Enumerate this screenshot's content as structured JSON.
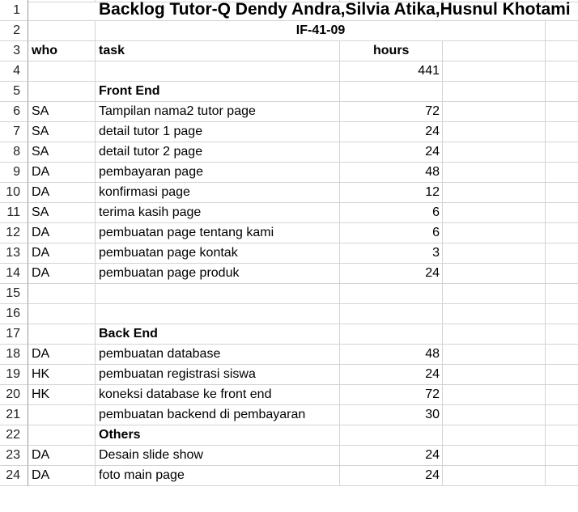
{
  "title": "Backlog Tutor-Q Dendy Andra,Silvia Atika,Husnul Khotami",
  "subtitle": "IF-41-09",
  "headers": {
    "who": "who",
    "task": "task",
    "hours": "hours"
  },
  "total_hours": "441",
  "sections": {
    "front_end": "Front End",
    "back_end": "Back End",
    "others": "Others"
  },
  "rows": [
    {
      "n": "1"
    },
    {
      "n": "2"
    },
    {
      "n": "3"
    },
    {
      "n": "4"
    },
    {
      "n": "5"
    },
    {
      "n": "6",
      "who": "SA",
      "task": "Tampilan nama2 tutor page",
      "hours": "72"
    },
    {
      "n": "7",
      "who": "SA",
      "task": "detail tutor 1 page",
      "hours": "24"
    },
    {
      "n": "8",
      "who": "SA",
      "task": "detail tutor 2 page",
      "hours": "24"
    },
    {
      "n": "9",
      "who": "DA",
      "task": "pembayaran page",
      "hours": "48"
    },
    {
      "n": "10",
      "who": "DA",
      "task": "konfirmasi page",
      "hours": "12"
    },
    {
      "n": "11",
      "who": "SA",
      "task": "terima kasih page",
      "hours": "6"
    },
    {
      "n": "12",
      "who": "DA",
      "task": "pembuatan page tentang kami",
      "hours": "6"
    },
    {
      "n": "13",
      "who": "DA",
      "task": "pembuatan page kontak",
      "hours": "3"
    },
    {
      "n": "14",
      "who": "DA",
      "task": "pembuatan page produk",
      "hours": "24"
    },
    {
      "n": "15"
    },
    {
      "n": "16"
    },
    {
      "n": "17"
    },
    {
      "n": "18",
      "who": "DA",
      "task": "pembuatan database",
      "hours": "48"
    },
    {
      "n": "19",
      "who": "HK",
      "task": "pembuatan registrasi siswa",
      "hours": "24"
    },
    {
      "n": "20",
      "who": "HK",
      "task": "koneksi database ke front end",
      "hours": "72"
    },
    {
      "n": "21",
      "who": "",
      "task": "pembuatan backend di pembayaran",
      "hours": "30"
    },
    {
      "n": "22"
    },
    {
      "n": "23",
      "who": "DA",
      "task": "Desain slide show",
      "hours": "24"
    },
    {
      "n": "24",
      "who": "DA",
      "task": "foto main page",
      "hours": "24"
    }
  ]
}
